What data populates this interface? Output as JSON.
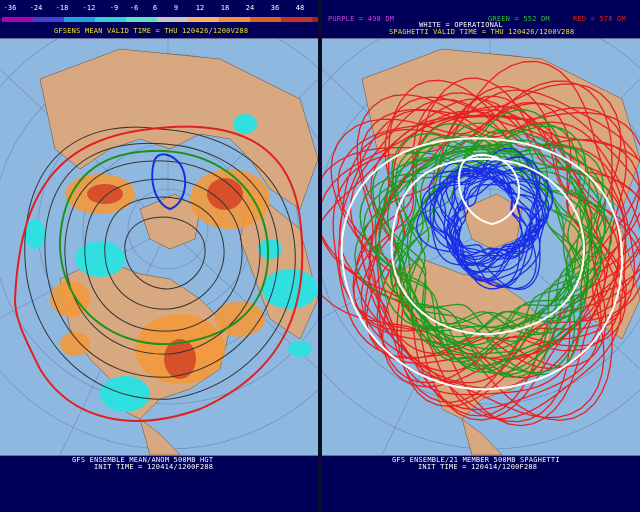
{
  "left": {
    "scale_labels": [
      "-36",
      "-24",
      "-18",
      "-12",
      "-9",
      "-6",
      "6",
      "9",
      "12",
      "18",
      "24",
      "36",
      "48"
    ],
    "scale_colors": [
      "#b000b0",
      "#4040d0",
      "#20a0e0",
      "#30d0d0",
      "#60e0c0",
      "#c8c8c8",
      "#f8b070",
      "#f09040",
      "#e06020",
      "#c83020",
      "#a02020",
      "#e060e0"
    ],
    "valid_time": "GFSENS MEAN VALID TIME = THU 120426/1200V288",
    "footer_line1": "GFS ENSEMBLE MEAN/ANOM 500MB HGT",
    "footer_line2": "INIT TIME = 120414/1200F288"
  },
  "right": {
    "legend_purple": "PURPLE = 498 DM",
    "legend_green": "GREEN = 552 DM",
    "legend_red": "RED = 576 DM",
    "legend_white": "WHITE = OPERATIONAL",
    "valid_time": "SPAGHETTI VALID TIME = THU 120426/1200V288",
    "footer_line1": "GFS ENSEMBLE/21 MEMBER 500MB SPAGHETTI",
    "footer_line2": "INIT TIME = 120414/1200F288"
  },
  "colors": {
    "ocean": "#8fb8e0",
    "land": "#d8a880",
    "positive_anomaly": "#f39a3c",
    "strong_positive": "#d8502a",
    "negative_anomaly": "#30e0e0",
    "contour": "#333333",
    "red_line": "#e02020",
    "green_line": "#209020",
    "blue_line": "#1030e0"
  }
}
